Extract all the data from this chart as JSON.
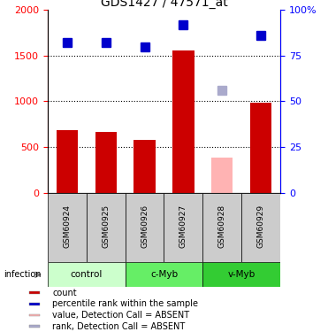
{
  "title": "GDS1427 / 47571_at",
  "samples": [
    "GSM60924",
    "GSM60925",
    "GSM60926",
    "GSM60927",
    "GSM60928",
    "GSM60929"
  ],
  "counts": [
    680,
    660,
    580,
    1560,
    380,
    980
  ],
  "ranks": [
    82,
    82,
    80,
    92,
    56,
    86
  ],
  "absent_flags": [
    false,
    false,
    false,
    false,
    true,
    false
  ],
  "bar_color_normal": "#cc0000",
  "bar_color_absent": "#ffb3b3",
  "rank_color_normal": "#0000cc",
  "rank_color_absent": "#aaaacc",
  "ylim_left": [
    0,
    2000
  ],
  "ylim_right": [
    0,
    100
  ],
  "yticks_left": [
    0,
    500,
    1000,
    1500,
    2000
  ],
  "yticks_right": [
    0,
    25,
    50,
    75,
    100
  ],
  "ytick_labels_right": [
    "0",
    "25",
    "50",
    "75",
    "100%"
  ],
  "groups": [
    {
      "label": "control",
      "indices": [
        0,
        1
      ],
      "color": "#ccffcc"
    },
    {
      "label": "c-Myb",
      "indices": [
        2,
        3
      ],
      "color": "#66ee66"
    },
    {
      "label": "v-Myb",
      "indices": [
        4,
        5
      ],
      "color": "#33cc33"
    }
  ],
  "group_label": "infection",
  "sample_box_color": "#cccccc",
  "legend_items": [
    {
      "label": "count",
      "color": "#cc0000"
    },
    {
      "label": "percentile rank within the sample",
      "color": "#0000cc"
    },
    {
      "label": "value, Detection Call = ABSENT",
      "color": "#ffb3b3"
    },
    {
      "label": "rank, Detection Call = ABSENT",
      "color": "#aaaacc"
    }
  ],
  "bar_width": 0.55,
  "rank_marker_size": 7
}
